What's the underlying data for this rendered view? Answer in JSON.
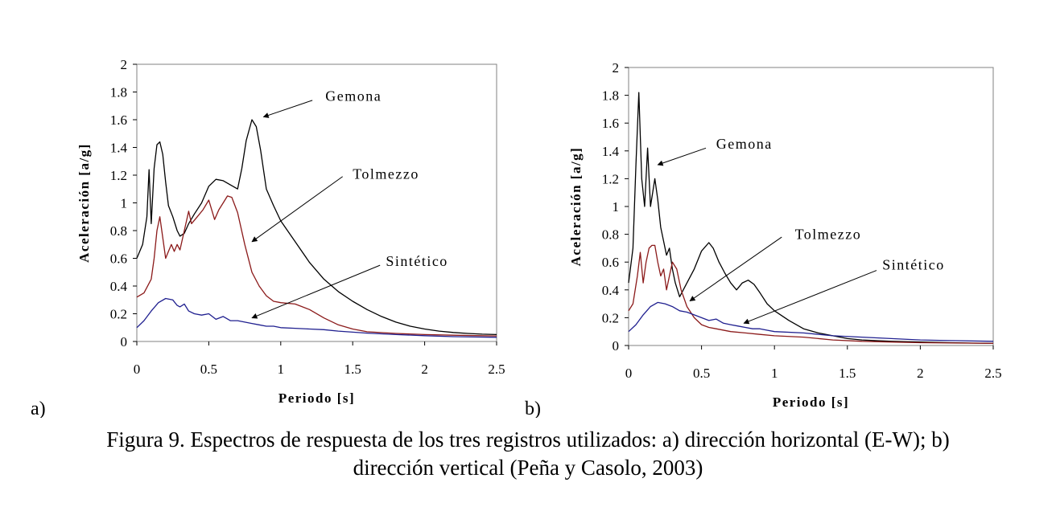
{
  "caption": {
    "line1": "Figura 9. Espectros de respuesta de los tres registros utilizados: a) dirección horizontal (E-W); b)",
    "line2": "dirección vertical (Peña y Casolo, 2003)"
  },
  "colors": {
    "Gemona": "#000000",
    "Tolmezzo": "#8b1a1a",
    "Sintetico": "#1f1f8f",
    "arrow": "#000000"
  },
  "chart_data": [
    {
      "type": "line",
      "panel_label": "a)",
      "xlabel": "Periodo [s]",
      "ylabel": "Aceleración [a/g]",
      "xlim": [
        0,
        2.5
      ],
      "ylim": [
        0,
        2
      ],
      "xticks": [
        0,
        0.5,
        1,
        1.5,
        2,
        2.5
      ],
      "xtick_labels": [
        "0",
        "0.5",
        "1",
        "1.5",
        "2",
        "2.5"
      ],
      "yticks": [
        0,
        0.2,
        0.4,
        0.6,
        0.8,
        1,
        1.2,
        1.4,
        1.6,
        1.8,
        2
      ],
      "ytick_labels": [
        "0",
        "0.2",
        "0.4",
        "0.6",
        "0.8",
        "1",
        "1.2",
        "1.4",
        "1.6",
        "1.8",
        "2"
      ],
      "grid": false,
      "series": [
        {
          "name": "Gemona",
          "color": "#000000",
          "x": [
            0,
            0.04,
            0.07,
            0.085,
            0.1,
            0.12,
            0.14,
            0.16,
            0.18,
            0.2,
            0.22,
            0.25,
            0.28,
            0.3,
            0.33,
            0.36,
            0.4,
            0.45,
            0.5,
            0.55,
            0.6,
            0.65,
            0.7,
            0.73,
            0.76,
            0.8,
            0.83,
            0.86,
            0.9,
            0.95,
            1.0,
            1.1,
            1.2,
            1.3,
            1.4,
            1.5,
            1.6,
            1.7,
            1.8,
            1.9,
            2.0,
            2.1,
            2.2,
            2.3,
            2.4,
            2.5
          ],
          "y": [
            0.6,
            0.7,
            0.9,
            1.24,
            0.85,
            1.25,
            1.42,
            1.44,
            1.35,
            1.15,
            0.98,
            0.9,
            0.8,
            0.76,
            0.78,
            0.85,
            0.92,
            1.0,
            1.12,
            1.17,
            1.16,
            1.13,
            1.1,
            1.25,
            1.45,
            1.6,
            1.55,
            1.38,
            1.1,
            0.98,
            0.87,
            0.72,
            0.57,
            0.45,
            0.36,
            0.29,
            0.23,
            0.18,
            0.14,
            0.11,
            0.09,
            0.075,
            0.065,
            0.058,
            0.053,
            0.05
          ]
        },
        {
          "name": "Tolmezzo",
          "color": "#8b1a1a",
          "x": [
            0,
            0.05,
            0.1,
            0.12,
            0.14,
            0.16,
            0.18,
            0.2,
            0.22,
            0.24,
            0.26,
            0.28,
            0.3,
            0.33,
            0.36,
            0.38,
            0.42,
            0.46,
            0.5,
            0.52,
            0.54,
            0.57,
            0.6,
            0.63,
            0.66,
            0.7,
            0.75,
            0.8,
            0.85,
            0.9,
            0.95,
            1.0,
            1.1,
            1.2,
            1.3,
            1.4,
            1.5,
            1.6,
            1.8,
            2.0,
            2.2,
            2.5
          ],
          "y": [
            0.32,
            0.35,
            0.45,
            0.6,
            0.8,
            0.9,
            0.75,
            0.6,
            0.65,
            0.7,
            0.65,
            0.7,
            0.66,
            0.8,
            0.94,
            0.85,
            0.9,
            0.95,
            1.02,
            0.95,
            0.88,
            0.95,
            1.0,
            1.05,
            1.04,
            0.93,
            0.7,
            0.5,
            0.4,
            0.33,
            0.29,
            0.28,
            0.27,
            0.23,
            0.17,
            0.12,
            0.09,
            0.07,
            0.058,
            0.05,
            0.045,
            0.04
          ]
        },
        {
          "name": "Sintético",
          "color": "#1f1f8f",
          "x": [
            0,
            0.05,
            0.1,
            0.15,
            0.2,
            0.25,
            0.28,
            0.3,
            0.33,
            0.36,
            0.4,
            0.45,
            0.5,
            0.55,
            0.6,
            0.65,
            0.7,
            0.75,
            0.8,
            0.85,
            0.9,
            0.95,
            1.0,
            1.1,
            1.2,
            1.3,
            1.4,
            1.6,
            1.8,
            2.0,
            2.2,
            2.5
          ],
          "y": [
            0.1,
            0.15,
            0.22,
            0.28,
            0.31,
            0.3,
            0.26,
            0.25,
            0.27,
            0.22,
            0.2,
            0.19,
            0.2,
            0.16,
            0.18,
            0.15,
            0.15,
            0.14,
            0.13,
            0.12,
            0.11,
            0.11,
            0.1,
            0.095,
            0.09,
            0.085,
            0.075,
            0.06,
            0.05,
            0.042,
            0.035,
            0.03
          ]
        }
      ],
      "annotations": [
        {
          "text": "Gemona",
          "label_x": 1.31,
          "label_y": 1.77,
          "arrow_from": [
            1.22,
            1.74
          ],
          "arrow_to": [
            0.88,
            1.62
          ]
        },
        {
          "text": "Tolmezzo",
          "label_x": 1.5,
          "label_y": 1.21,
          "arrow_from": [
            1.43,
            1.19
          ],
          "arrow_to": [
            0.8,
            0.72
          ]
        },
        {
          "text": "Sintético",
          "label_x": 1.73,
          "label_y": 0.58,
          "arrow_from": [
            1.69,
            0.55
          ],
          "arrow_to": [
            0.8,
            0.17
          ]
        }
      ]
    },
    {
      "type": "line",
      "panel_label": "b)",
      "xlabel": "Periodo [s]",
      "ylabel": "Aceleración [a/g]",
      "xlim": [
        0,
        2.5
      ],
      "ylim": [
        0,
        2
      ],
      "xticks": [
        0,
        0.5,
        1,
        1.5,
        2,
        2.5
      ],
      "xtick_labels": [
        "0",
        "0.5",
        "1",
        "1.5",
        "2",
        "2.5"
      ],
      "yticks": [
        0,
        0.2,
        0.4,
        0.6,
        0.8,
        1,
        1.2,
        1.4,
        1.6,
        1.8,
        2
      ],
      "ytick_labels": [
        "0",
        "0.2",
        "0.4",
        "0.6",
        "0.8",
        "1",
        "1.2",
        "1.4",
        "1.6",
        "1.8",
        "2"
      ],
      "grid": false,
      "series": [
        {
          "name": "Gemona",
          "color": "#000000",
          "x": [
            0,
            0.03,
            0.05,
            0.07,
            0.09,
            0.11,
            0.13,
            0.15,
            0.18,
            0.2,
            0.22,
            0.24,
            0.26,
            0.28,
            0.3,
            0.32,
            0.35,
            0.4,
            0.45,
            0.5,
            0.55,
            0.58,
            0.62,
            0.66,
            0.7,
            0.74,
            0.78,
            0.82,
            0.86,
            0.9,
            0.95,
            1.0,
            1.1,
            1.2,
            1.3,
            1.4,
            1.5,
            1.6,
            1.8,
            2.0,
            2.2,
            2.5
          ],
          "y": [
            0.45,
            0.7,
            1.3,
            1.82,
            1.2,
            1.0,
            1.42,
            1.0,
            1.2,
            1.05,
            0.85,
            0.75,
            0.65,
            0.7,
            0.55,
            0.45,
            0.35,
            0.45,
            0.55,
            0.68,
            0.74,
            0.7,
            0.6,
            0.52,
            0.45,
            0.4,
            0.45,
            0.47,
            0.44,
            0.38,
            0.3,
            0.25,
            0.18,
            0.12,
            0.09,
            0.07,
            0.05,
            0.04,
            0.03,
            0.025,
            0.02,
            0.015
          ]
        },
        {
          "name": "Tolmezzo",
          "color": "#8b1a1a",
          "x": [
            0,
            0.03,
            0.06,
            0.08,
            0.1,
            0.12,
            0.14,
            0.16,
            0.18,
            0.2,
            0.22,
            0.24,
            0.26,
            0.28,
            0.3,
            0.33,
            0.36,
            0.4,
            0.45,
            0.5,
            0.55,
            0.6,
            0.7,
            0.8,
            0.9,
            1.0,
            1.2,
            1.4,
            1.6,
            1.8,
            2.0,
            2.5
          ],
          "y": [
            0.25,
            0.3,
            0.5,
            0.67,
            0.45,
            0.6,
            0.7,
            0.72,
            0.72,
            0.6,
            0.5,
            0.55,
            0.4,
            0.5,
            0.6,
            0.55,
            0.4,
            0.28,
            0.2,
            0.15,
            0.13,
            0.12,
            0.1,
            0.09,
            0.08,
            0.07,
            0.06,
            0.04,
            0.03,
            0.025,
            0.02,
            0.015
          ]
        },
        {
          "name": "Sintético",
          "color": "#1f1f8f",
          "x": [
            0,
            0.05,
            0.1,
            0.15,
            0.2,
            0.25,
            0.3,
            0.35,
            0.4,
            0.45,
            0.5,
            0.55,
            0.6,
            0.65,
            0.7,
            0.75,
            0.8,
            0.85,
            0.9,
            0.95,
            1.0,
            1.2,
            1.4,
            1.6,
            1.8,
            2.0,
            2.2,
            2.5
          ],
          "y": [
            0.1,
            0.15,
            0.22,
            0.28,
            0.31,
            0.3,
            0.28,
            0.25,
            0.24,
            0.22,
            0.2,
            0.18,
            0.19,
            0.16,
            0.15,
            0.14,
            0.13,
            0.12,
            0.12,
            0.11,
            0.1,
            0.09,
            0.07,
            0.06,
            0.05,
            0.04,
            0.035,
            0.03
          ]
        }
      ],
      "annotations": [
        {
          "text": "Gemona",
          "label_x": 0.6,
          "label_y": 1.45,
          "arrow_from": [
            0.53,
            1.42
          ],
          "arrow_to": [
            0.2,
            1.3
          ]
        },
        {
          "text": "Tolmezzo",
          "label_x": 1.14,
          "label_y": 0.8,
          "arrow_from": [
            1.05,
            0.78
          ],
          "arrow_to": [
            0.42,
            0.32
          ]
        },
        {
          "text": "Sintético",
          "label_x": 1.74,
          "label_y": 0.58,
          "arrow_from": [
            1.7,
            0.54
          ],
          "arrow_to": [
            0.79,
            0.16
          ]
        }
      ]
    }
  ]
}
